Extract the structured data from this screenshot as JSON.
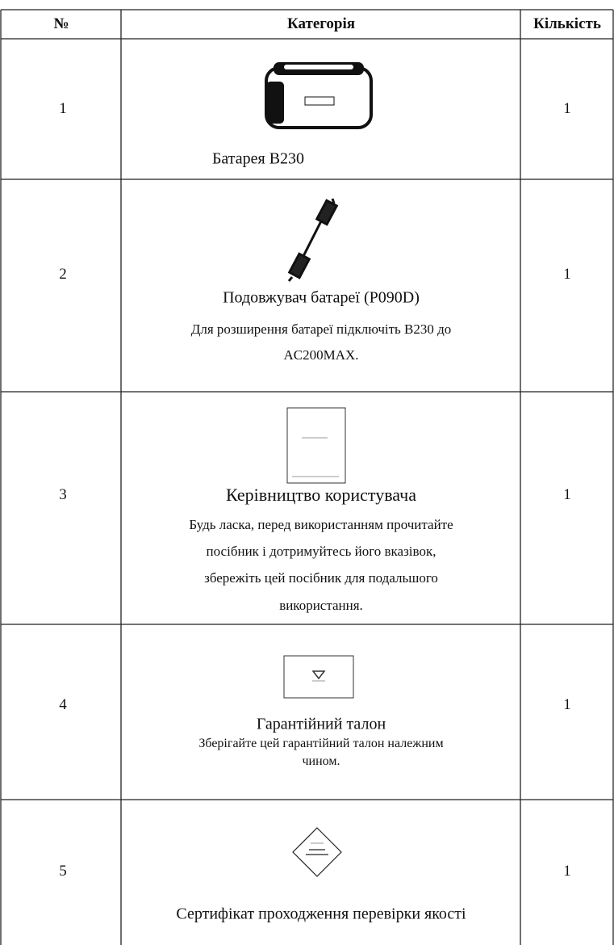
{
  "table": {
    "header": [
      "№",
      "Категорія",
      "Кількість"
    ],
    "rows": [
      {
        "number": "1",
        "title": "Батарея B230",
        "description": [],
        "quantity": "1"
      },
      {
        "number": "2",
        "title": "Подовжувач батареї  (P090D)",
        "description": [
          "Для розширення батареї підключіть B230 до",
          "AC200MAX."
        ],
        "quantity": "1"
      },
      {
        "number": "3",
        "title": "Керівництво користувача",
        "description": [
          "Будь ласка, перед використанням прочитайте",
          "посібник  і дотримуйтесь його вказівок,",
          "збережіть цей посібник для подальшого",
          "використання."
        ],
        "quantity": "1"
      },
      {
        "number": "4",
        "title": "Гарантійний талон",
        "description": [
          "Зберігайте цей гарантійний талон належним",
          "чином."
        ],
        "quantity": "1"
      },
      {
        "number": "5",
        "title": "Сертифікат проходження перевірки якості",
        "description": [],
        "quantity": "1"
      }
    ]
  }
}
